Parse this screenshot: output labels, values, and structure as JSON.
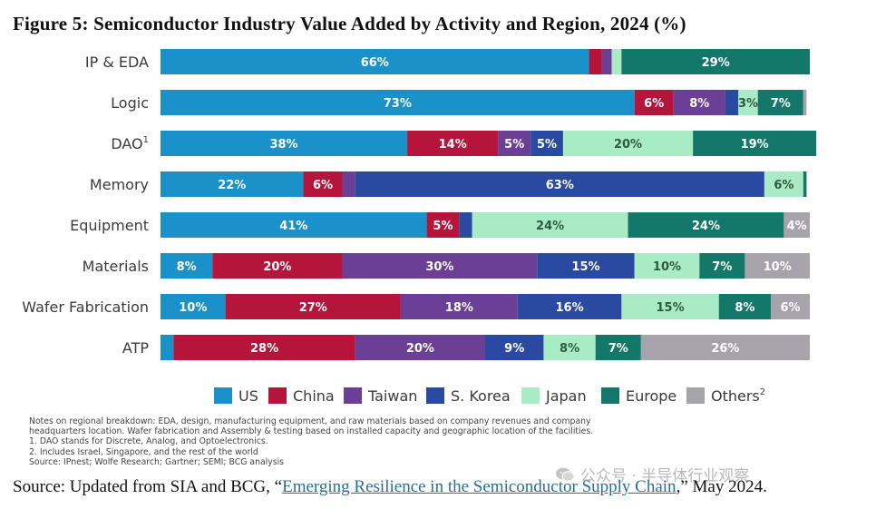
{
  "title": "Figure 5: Semiconductor Industry Value Added by Activity and Region, 2024 (%)",
  "colors": {
    "US": "#1b91c9",
    "China": "#b5153b",
    "Taiwan": "#6a3f95",
    "S. Korea": "#2a4aa2",
    "Japan": "#a8ebc5",
    "Europe": "#137869",
    "Others": "#a6a3ab"
  },
  "chart_data": {
    "type": "bar",
    "orientation": "horizontal",
    "stacked": true,
    "categories": [
      "IP & EDA",
      "Logic",
      "DAO",
      "Memory",
      "Equipment",
      "Materials",
      "Wafer Fabrication",
      "ATP"
    ],
    "category_superscripts": [
      "",
      "",
      "1",
      "",
      "",
      "",
      "",
      ""
    ],
    "series": [
      {
        "name": "US",
        "values": [
          66,
          73,
          38,
          22,
          41,
          8,
          10,
          2
        ]
      },
      {
        "name": "China",
        "values": [
          2,
          6,
          14,
          6,
          5,
          20,
          27,
          28
        ]
      },
      {
        "name": "Taiwan",
        "values": [
          1.5,
          8,
          5,
          2,
          0,
          30,
          18,
          20
        ]
      },
      {
        "name": "S. Korea",
        "values": [
          0,
          2,
          5,
          63,
          2,
          15,
          16,
          9
        ]
      },
      {
        "name": "Japan",
        "values": [
          1.5,
          3,
          20,
          6,
          24,
          10,
          15,
          8
        ]
      },
      {
        "name": "Europe",
        "values": [
          29,
          7,
          19,
          0.5,
          24,
          7,
          8,
          7
        ]
      },
      {
        "name": "Others",
        "values": [
          0,
          0.5,
          0,
          0,
          4,
          10,
          6,
          26
        ]
      }
    ],
    "data_labels": [
      [
        "66%",
        "",
        "",
        "",
        "",
        "29%",
        ""
      ],
      [
        "73%",
        "6%",
        "8%",
        "",
        "3%",
        "7%",
        ""
      ],
      [
        "38%",
        "14%",
        "5%",
        "5%",
        "20%",
        "19%",
        ""
      ],
      [
        "22%",
        "6%",
        "",
        "63%",
        "6%",
        "",
        ""
      ],
      [
        "41%",
        "5%",
        "",
        "",
        "24%",
        "24%",
        "4%"
      ],
      [
        "8%",
        "20%",
        "30%",
        "15%",
        "10%",
        "7%",
        "10%"
      ],
      [
        "10%",
        "27%",
        "18%",
        "16%",
        "15%",
        "8%",
        "6%"
      ],
      [
        "",
        "28%",
        "20%",
        "9%",
        "8%",
        "7%",
        "26%"
      ]
    ],
    "legend": [
      "US",
      "China",
      "Taiwan",
      "S. Korea",
      "Japan",
      "Europe",
      "Others"
    ],
    "legend_superscripts": [
      "",
      "",
      "",
      "",
      "",
      "",
      "2"
    ],
    "legend_position": "bottom",
    "xlim": [
      0,
      100
    ],
    "grid": false
  },
  "notes": [
    "Notes on regional breakdown: EDA, design, manufacturing equipment, and raw materials based on company revenues and company",
    "headquarters location. Wafer fabrication and Assembly & testing based on installed capacity and geographic location of the facilities.",
    "1. DAO stands for Discrete, Analog, and Optoelectronics.",
    "2. Includes Israel, Singapore, and the rest of the world",
    "Source: IPnest; Wolfe Research; Gartner; SEMI; BCG analysis"
  ],
  "source": {
    "prefix": "Source: Updated from SIA and BCG, “",
    "link_text": "Emerging Resilience in the Semiconductor Supply Chain",
    "suffix": ",” May 2024."
  },
  "watermark": "公众号 · 半导体行业观察"
}
